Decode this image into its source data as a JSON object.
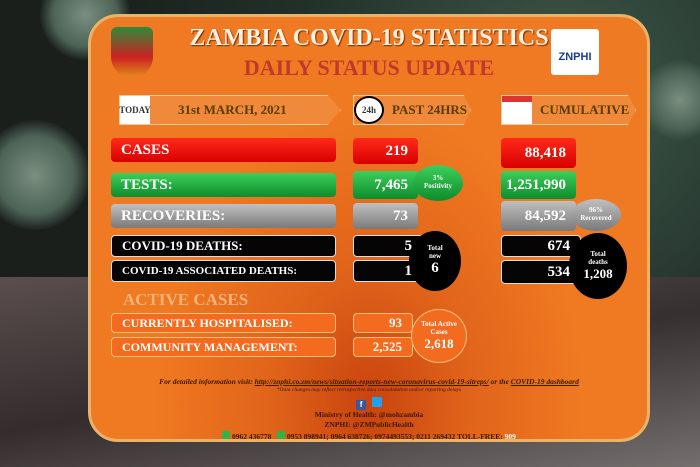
{
  "header": {
    "title": "ZAMBIA COVID-19 STATISTICS",
    "subtitle": "DAILY STATUS UPDATE",
    "logo_text": "ZNPHI"
  },
  "columns": {
    "date_icon": "TODAY",
    "date": "31st MARCH, 2021",
    "past_icon": "24h",
    "past": "PAST 24HRS",
    "cumulative": "CUMULATIVE"
  },
  "rows": {
    "cases": {
      "label": "CASES",
      "past": "219",
      "cumulative": "88,418"
    },
    "tests": {
      "label": "TESTS:",
      "past": "7,465",
      "positivity": "3%",
      "positivity_label": "Positivity",
      "cumulative": "1,251,990"
    },
    "recoveries": {
      "label": "RECOVERIES:",
      "past": "73",
      "cumulative": "84,592",
      "recovered_pct": "96%",
      "recovered_label": "Recovered"
    },
    "deaths": {
      "label": "COVID-19 DEATHS:",
      "past": "5",
      "cumulative": "674"
    },
    "associated_deaths": {
      "label": "COVID-19 ASSOCIATED DEATHS:",
      "past": "1",
      "cumulative": "534"
    },
    "total_new": {
      "label1": "Total",
      "label2": "new",
      "value": "6"
    },
    "total_deaths": {
      "label1": "Total",
      "label2": "deaths",
      "value": "1,208"
    }
  },
  "active": {
    "heading": "ACTIVE CASES",
    "hospitalised": {
      "label": "CURRENTLY HOSPITALISED:",
      "value": "93"
    },
    "community": {
      "label": "COMMUNITY MANAGEMENT:",
      "value": "2,525"
    },
    "total": {
      "label1": "Total Active",
      "label2": "Cases",
      "value": "2,618"
    }
  },
  "footer": {
    "info_prefix": "For detailed information visit:",
    "url": "http://znphi.co.zm/news/situation-reports-new-coronavirus-covid-19-sitreps/",
    "info_mid": "or the",
    "dashboard": "COVID-19 dashboard",
    "note": "*Data changes may reflect retrospective data consolidation and/or reporting delays",
    "ministry": "Ministry of Health: @mohzambia",
    "znphi": "ZNPHI: @ZMPublicHealth",
    "whatsapp": "0962 436778",
    "phones": "0953 898941; 0964 638726; 0974493553; 0211 269432 TOLL-FREE:",
    "tollfree": "909"
  },
  "colors": {
    "panel": "#f07a22",
    "cases": "#e00000",
    "tests": "#12993a",
    "recoveries": "#9a9a9a",
    "deaths": "#050505"
  }
}
